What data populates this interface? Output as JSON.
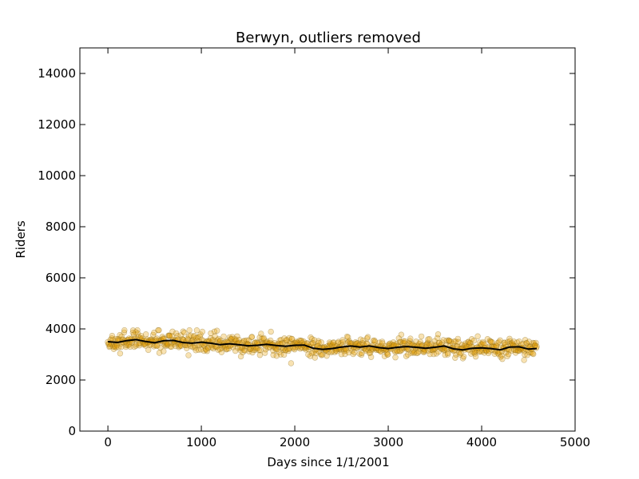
{
  "chart_data": {
    "type": "scatter",
    "title": "Berwyn, outliers removed",
    "xlabel": "Days since 1/1/2001",
    "ylabel": "Riders",
    "xlim": [
      -300,
      5000
    ],
    "ylim": [
      0,
      15000
    ],
    "xticks": [
      0,
      1000,
      2000,
      3000,
      4000,
      5000
    ],
    "yticks": [
      0,
      2000,
      4000,
      6000,
      8000,
      10000,
      12000,
      14000
    ],
    "grid": false,
    "legend": "none",
    "x_range_points": [
      0,
      4590
    ],
    "series": [
      {
        "kind": "points",
        "color": "#e8a000",
        "edge_color": "#8a6d1f",
        "opacity": 0.3,
        "approx_point_count": 900,
        "typical_range": [
          2700,
          3950
        ]
      },
      {
        "kind": "smoothed-line",
        "color": "#000000",
        "x": [
          0,
          100,
          200,
          300,
          400,
          500,
          600,
          700,
          800,
          900,
          1000,
          1100,
          1200,
          1300,
          1400,
          1500,
          1600,
          1700,
          1800,
          1900,
          2000,
          2100,
          2200,
          2300,
          2400,
          2500,
          2600,
          2700,
          2800,
          2900,
          3000,
          3100,
          3200,
          3300,
          3400,
          3500,
          3600,
          3700,
          3800,
          3900,
          4000,
          4100,
          4200,
          4300,
          4400,
          4500,
          4590
        ],
        "y": [
          3500,
          3470,
          3540,
          3580,
          3510,
          3460,
          3540,
          3550,
          3470,
          3440,
          3480,
          3440,
          3380,
          3420,
          3380,
          3340,
          3360,
          3400,
          3350,
          3320,
          3360,
          3370,
          3240,
          3200,
          3230,
          3290,
          3330,
          3290,
          3330,
          3270,
          3230,
          3280,
          3310,
          3280,
          3240,
          3280,
          3330,
          3220,
          3180,
          3240,
          3260,
          3230,
          3180,
          3290,
          3300,
          3210,
          3230
        ]
      }
    ]
  }
}
